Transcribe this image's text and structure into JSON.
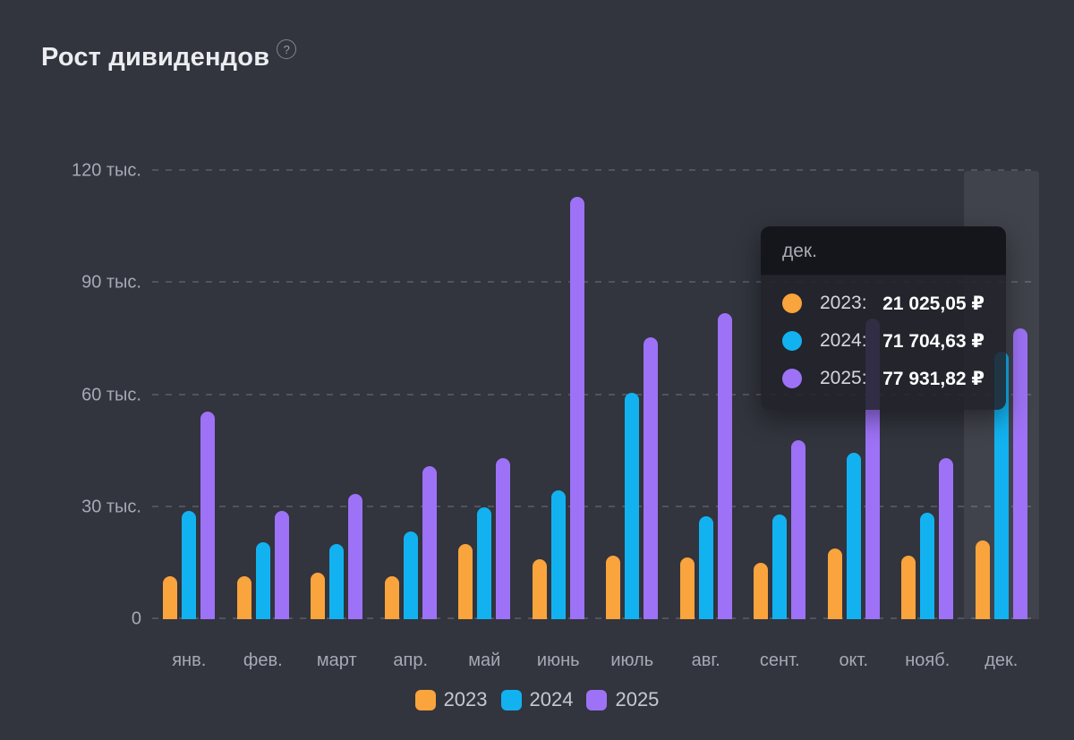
{
  "header": {
    "title": "Рост дивидендов",
    "help_glyph": "?"
  },
  "colors": {
    "background": "#32343E",
    "series_2023": "#F9A43C",
    "series_2024": "#12B2F1",
    "series_2025": "#9D72F6",
    "gridline": "#51545F",
    "axis_text": "#A5AAB4",
    "highlight_band": "rgba(255,255,255,0.075)"
  },
  "chart_data": {
    "type": "bar",
    "title": "Рост дивидендов",
    "categories": [
      "янв.",
      "фев.",
      "март",
      "апр.",
      "май",
      "июнь",
      "июль",
      "авг.",
      "сент.",
      "окт.",
      "нояб.",
      "дек."
    ],
    "series": [
      {
        "name": "2023",
        "color": "#F9A43C",
        "values": [
          11500,
          11500,
          12500,
          11500,
          20000,
          16000,
          17000,
          16500,
          15000,
          19000,
          17000,
          21025.05
        ]
      },
      {
        "name": "2024",
        "color": "#12B2F1",
        "values": [
          29000,
          20500,
          20000,
          23500,
          30000,
          34500,
          60500,
          27500,
          28000,
          44500,
          28500,
          71704.63
        ]
      },
      {
        "name": "2025",
        "color": "#9D72F6",
        "values": [
          55500,
          29000,
          33500,
          41000,
          43000,
          113000,
          75500,
          82000,
          48000,
          80500,
          43000,
          77931.82
        ]
      }
    ],
    "ylim": [
      0,
      120000
    ],
    "yticks": [
      {
        "value": 0,
        "label": "0"
      },
      {
        "value": 30000,
        "label": "30 тыс."
      },
      {
        "value": 60000,
        "label": "60 тыс."
      },
      {
        "value": 90000,
        "label": "90 тыс."
      },
      {
        "value": 120000,
        "label": "120 тыс."
      }
    ],
    "grid": "dashed horizontal",
    "legend_position": "bottom",
    "highlighted_category": "дек."
  },
  "tooltip": {
    "title": "дек.",
    "rows": [
      {
        "label": "2023:",
        "value": "21 025,05 ₽",
        "color": "#F9A43C"
      },
      {
        "label": "2024:",
        "value": "71 704,63 ₽",
        "color": "#12B2F1"
      },
      {
        "label": "2025:",
        "value": "77 931,82 ₽",
        "color": "#9D72F6"
      }
    ]
  },
  "legend": {
    "items": [
      {
        "label": "2023",
        "color": "#F9A43C"
      },
      {
        "label": "2024",
        "color": "#12B2F1"
      },
      {
        "label": "2025",
        "color": "#9D72F6"
      }
    ]
  }
}
